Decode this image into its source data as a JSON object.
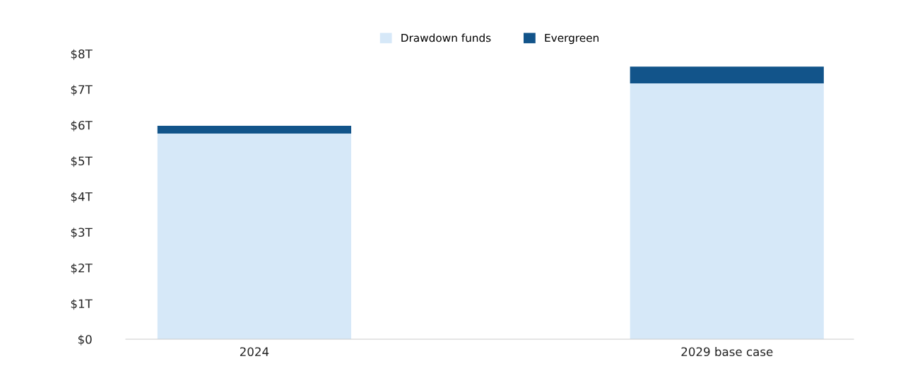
{
  "chart_data": {
    "type": "bar",
    "stacked": true,
    "categories": [
      "2024",
      "2029 base case"
    ],
    "series": [
      {
        "name": "Drawdown funds",
        "color": "#d6e8f8",
        "values": [
          5.76,
          7.17
        ]
      },
      {
        "name": "Evergreen",
        "color": "#12548a",
        "values": [
          0.22,
          0.47
        ]
      }
    ],
    "ylim": [
      0,
      8
    ],
    "yticks": [
      {
        "value": 0,
        "label": "$0"
      },
      {
        "value": 1,
        "label": "$1T"
      },
      {
        "value": 2,
        "label": "$2T"
      },
      {
        "value": 3,
        "label": "$3T"
      },
      {
        "value": 4,
        "label": "$4T"
      },
      {
        "value": 5,
        "label": "$5T"
      },
      {
        "value": 6,
        "label": "$6T"
      },
      {
        "value": 7,
        "label": "$7T"
      },
      {
        "value": 8,
        "label": "$8T"
      }
    ],
    "grid": false,
    "legend": "top"
  }
}
